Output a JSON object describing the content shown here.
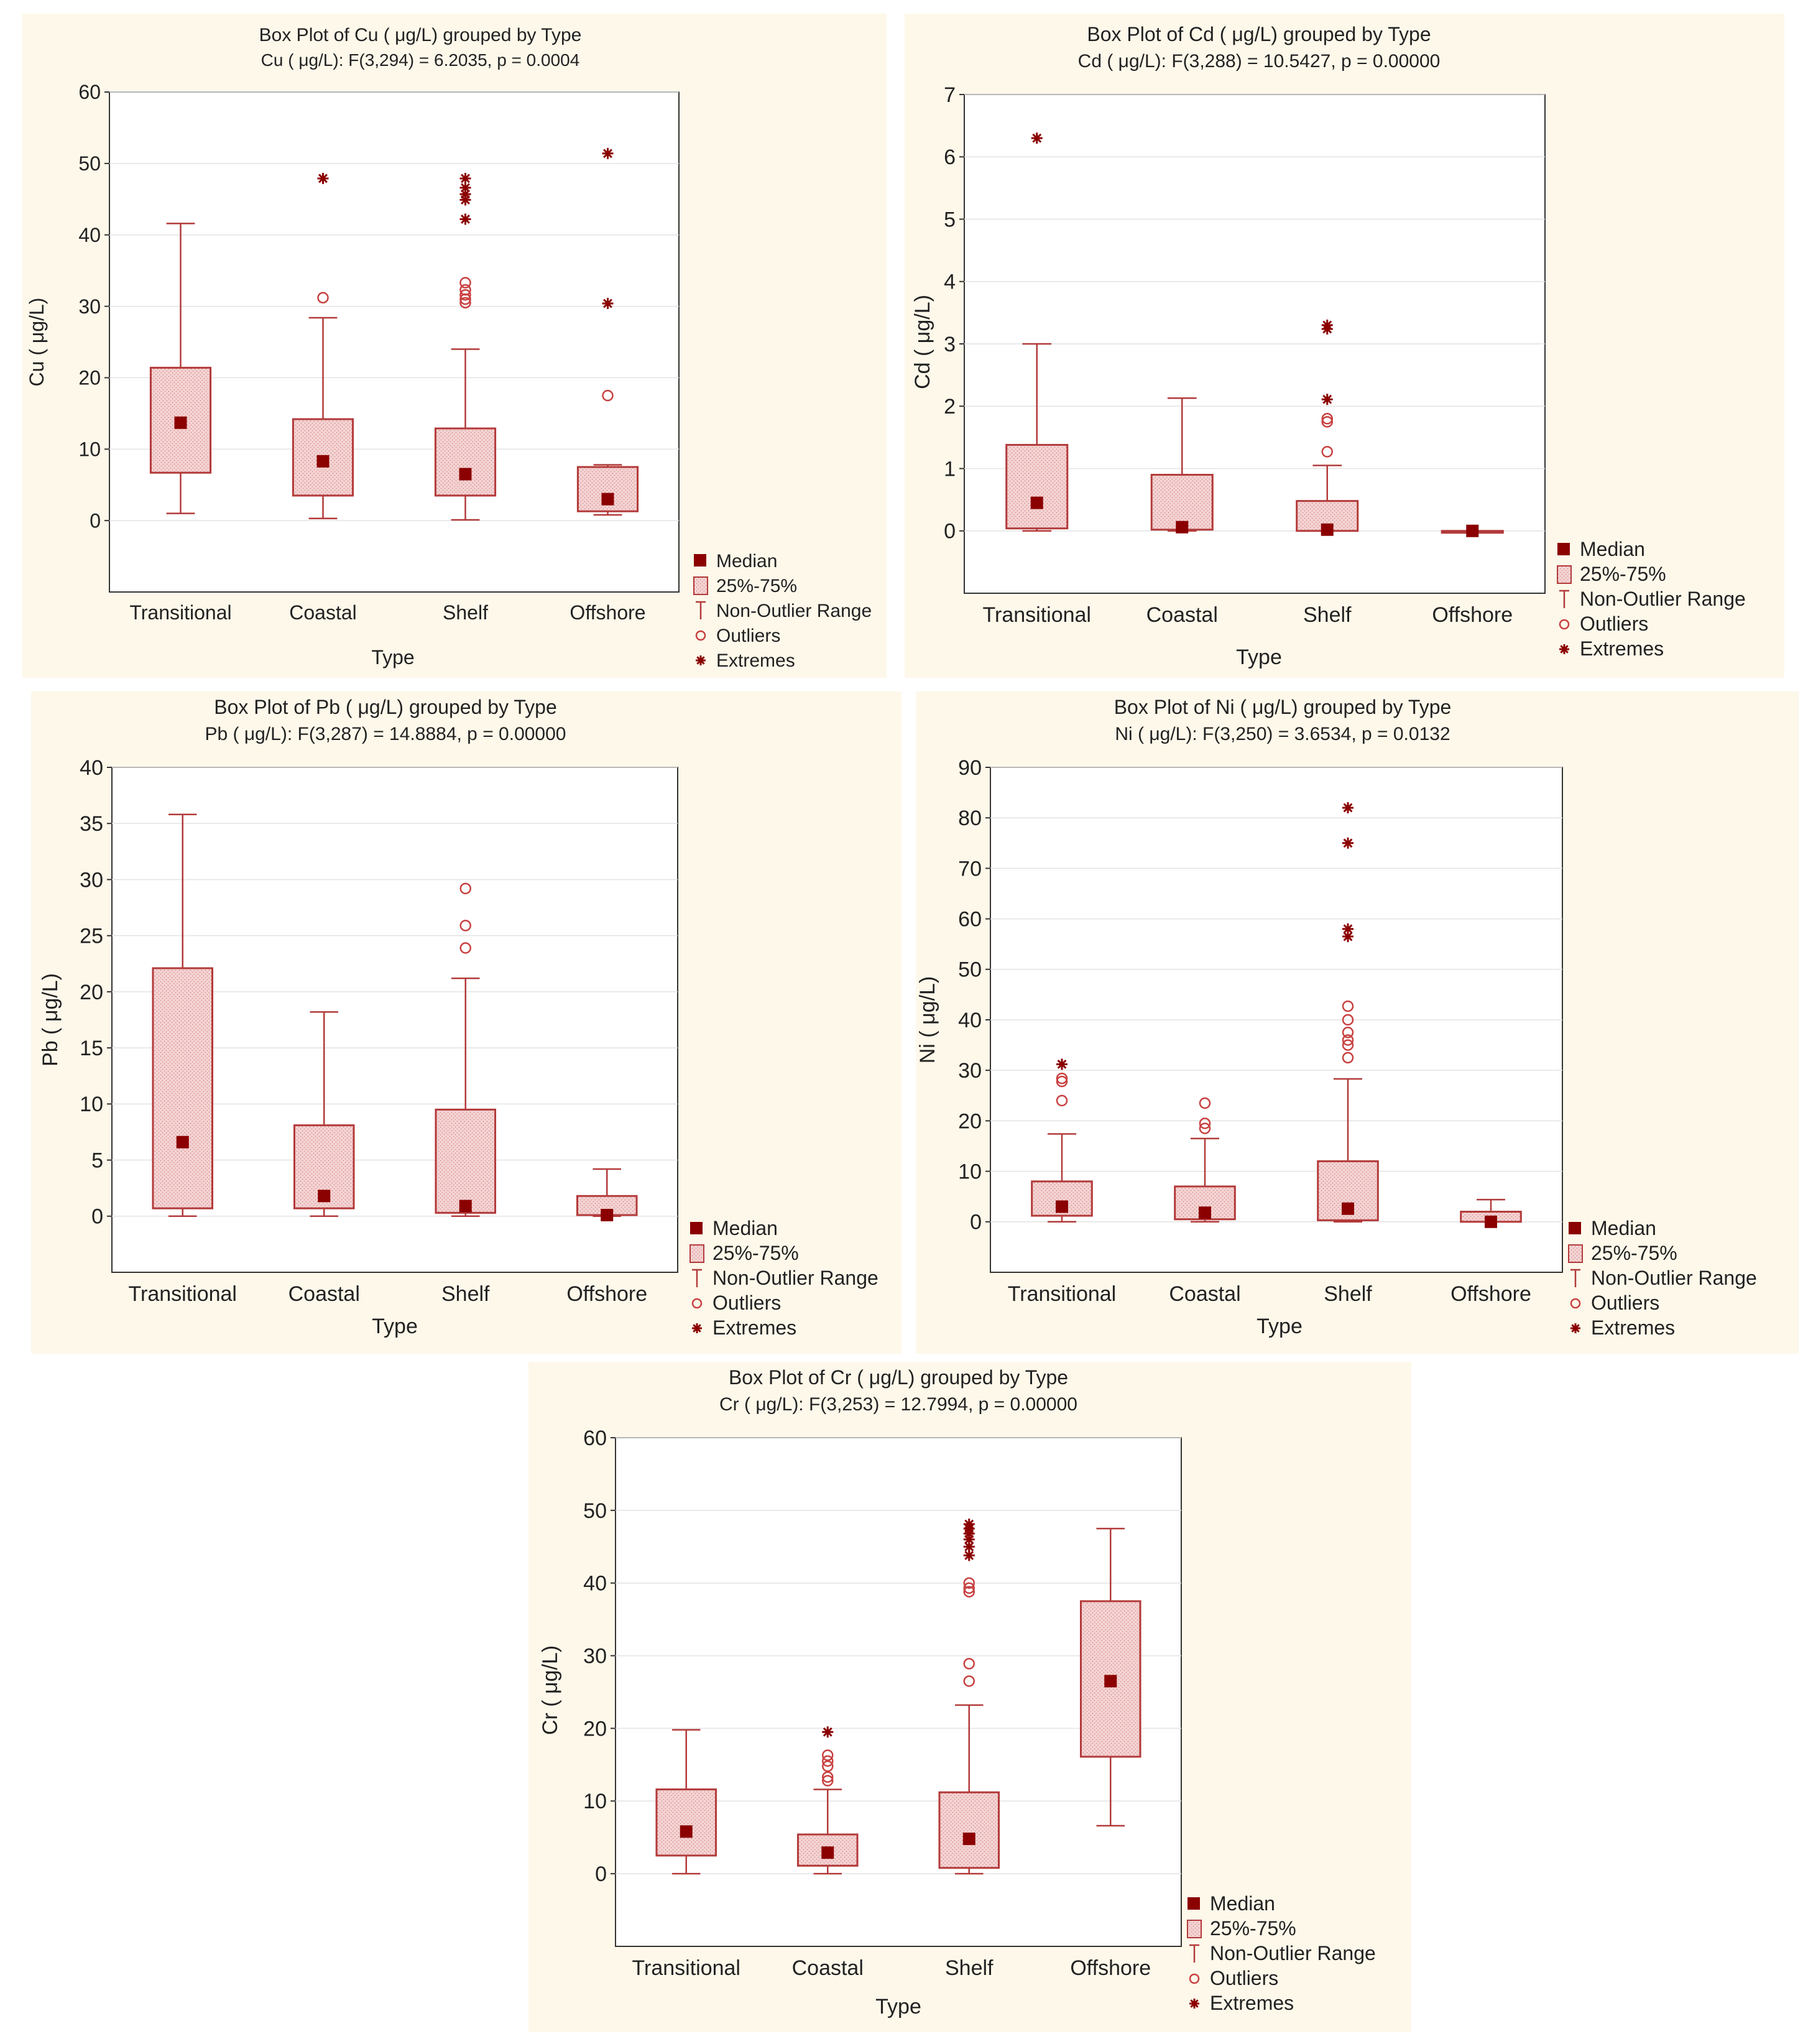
{
  "chart_data": [
    {
      "id": "cu",
      "type": "box",
      "title": "Box Plot of Cu ( μg/L) grouped by  Type",
      "subtitle": "Cu ( μg/L):   F(3,294) = 6.2035, p = 0.0004",
      "xlabel": "Type",
      "ylabel": "Cu ( μg/L)",
      "ylim": [
        -10,
        60
      ],
      "yticks": [
        0,
        10,
        20,
        30,
        40,
        50,
        60
      ],
      "categories": [
        "Transitional",
        "Coastal",
        "Shelf",
        "Offshore"
      ],
      "boxes": [
        {
          "category": "Transitional",
          "min": 1.0,
          "q1": 6.7,
          "median": 13.7,
          "q3": 21.4,
          "max": 41.6,
          "outliers": [],
          "extremes": []
        },
        {
          "category": "Coastal",
          "min": 0.3,
          "q1": 3.5,
          "median": 8.3,
          "q3": 14.2,
          "max": 28.4,
          "outliers": [
            31.2
          ],
          "extremes": [
            47.9
          ]
        },
        {
          "category": "Shelf",
          "min": 0.1,
          "q1": 3.5,
          "median": 6.5,
          "q3": 12.9,
          "max": 24.0,
          "outliers": [
            30.5,
            31.0,
            31.6,
            32.3,
            33.3
          ],
          "extremes": [
            42.2,
            44.9,
            45.7,
            46.6,
            47.9
          ]
        },
        {
          "category": "Offshore",
          "min": 0.8,
          "q1": 1.3,
          "median": 3.0,
          "q3": 7.5,
          "max": 7.8,
          "outliers": [
            17.5
          ],
          "extremes": [
            30.4,
            51.4
          ]
        }
      ]
    },
    {
      "id": "cd",
      "type": "box",
      "title": "Box Plot of Cd  ( μg/L) grouped by  Type",
      "subtitle": "Cd  ( μg/L):   F(3,288) = 10.5427, p = 0.00000",
      "xlabel": "Type",
      "ylabel": "Cd  ( μg/L)",
      "ylim": [
        -1,
        7
      ],
      "yticks": [
        0,
        1,
        2,
        3,
        4,
        5,
        6,
        7
      ],
      "categories": [
        "Transitional",
        "Coastal",
        "Shelf",
        "Offshore"
      ],
      "boxes": [
        {
          "category": "Transitional",
          "min": 0.0,
          "q1": 0.04,
          "median": 0.45,
          "q3": 1.38,
          "max": 3.0,
          "outliers": [],
          "extremes": [
            6.3
          ]
        },
        {
          "category": "Coastal",
          "min": 0.0,
          "q1": 0.02,
          "median": 0.06,
          "q3": 0.9,
          "max": 2.13,
          "outliers": [],
          "extremes": []
        },
        {
          "category": "Shelf",
          "min": 0.0,
          "q1": 0.0,
          "median": 0.02,
          "q3": 0.48,
          "max": 1.05,
          "outliers": [
            1.27,
            1.75,
            1.8
          ],
          "extremes": [
            2.11,
            3.24,
            3.3
          ]
        },
        {
          "category": "Offshore",
          "min": 0.0,
          "q1": 0.0,
          "median": 0.0,
          "q3": 0.0,
          "max": 0.0,
          "outliers": [],
          "extremes": []
        }
      ]
    },
    {
      "id": "pb",
      "type": "box",
      "title": "Box Plot of Pb  ( μg/L) grouped by  Type",
      "subtitle": "Pb  ( μg/L):   F(3,287) = 14.8884, p = 0.00000",
      "xlabel": "Type",
      "ylabel": "Pb  ( μg/L)",
      "ylim": [
        -5,
        40
      ],
      "yticks": [
        0,
        5,
        10,
        15,
        20,
        25,
        30,
        35,
        40
      ],
      "categories": [
        "Transitional",
        "Coastal",
        "Shelf",
        "Offshore"
      ],
      "boxes": [
        {
          "category": "Transitional",
          "min": 0.0,
          "q1": 0.7,
          "median": 6.6,
          "q3": 22.1,
          "max": 35.8,
          "outliers": [],
          "extremes": []
        },
        {
          "category": "Coastal",
          "min": 0.0,
          "q1": 0.7,
          "median": 1.8,
          "q3": 8.1,
          "max": 18.2,
          "outliers": [],
          "extremes": []
        },
        {
          "category": "Shelf",
          "min": 0.0,
          "q1": 0.3,
          "median": 0.9,
          "q3": 9.5,
          "max": 21.2,
          "outliers": [
            23.9,
            25.9,
            29.2
          ],
          "extremes": []
        },
        {
          "category": "Offshore",
          "min": 0.0,
          "q1": 0.1,
          "median": 0.1,
          "q3": 1.8,
          "max": 4.2,
          "outliers": [],
          "extremes": []
        }
      ]
    },
    {
      "id": "ni",
      "type": "box",
      "title": "Box Plot of Ni  ( μg/L) grouped by  Type",
      "subtitle": "Ni  ( μg/L):   F(3,250) = 3.6534, p = 0.0132",
      "xlabel": "Type",
      "ylabel": "Ni  ( μg/L)",
      "ylim": [
        -10,
        90
      ],
      "yticks": [
        0,
        10,
        20,
        30,
        40,
        50,
        60,
        70,
        80,
        90
      ],
      "categories": [
        "Transitional",
        "Coastal",
        "Shelf",
        "Offshore"
      ],
      "boxes": [
        {
          "category": "Transitional",
          "min": 0.0,
          "q1": 1.2,
          "median": 3.0,
          "q3": 8.0,
          "max": 17.4,
          "outliers": [
            24.0,
            27.8,
            28.4
          ],
          "extremes": [
            31.2
          ]
        },
        {
          "category": "Coastal",
          "min": 0.0,
          "q1": 0.5,
          "median": 1.8,
          "q3": 7.0,
          "max": 16.5,
          "outliers": [
            18.5,
            19.5,
            23.5
          ],
          "extremes": []
        },
        {
          "category": "Shelf",
          "min": 0.0,
          "q1": 0.3,
          "median": 2.6,
          "q3": 12.0,
          "max": 28.3,
          "outliers": [
            32.5,
            35.0,
            36.0,
            37.5,
            40.0,
            42.7
          ],
          "extremes": [
            56.5,
            58.0,
            75.0,
            82.0
          ]
        },
        {
          "category": "Offshore",
          "min": 0.0,
          "q1": 0.0,
          "median": 0.0,
          "q3": 2.0,
          "max": 4.4,
          "outliers": [],
          "extremes": []
        }
      ]
    },
    {
      "id": "cr",
      "type": "box",
      "title": "Box Plot of Cr  ( μg/L) grouped by  Type",
      "subtitle": "Cr  ( μg/L):   F(3,253) = 12.7994, p = 0.00000",
      "xlabel": "Type",
      "ylabel": "Cr  ( μg/L)",
      "ylim": [
        -10,
        60
      ],
      "yticks": [
        0,
        10,
        20,
        30,
        40,
        50,
        60
      ],
      "categories": [
        "Transitional",
        "Coastal",
        "Shelf",
        "Offshore"
      ],
      "boxes": [
        {
          "category": "Transitional",
          "min": 0.0,
          "q1": 2.5,
          "median": 5.8,
          "q3": 11.6,
          "max": 19.8,
          "outliers": [],
          "extremes": []
        },
        {
          "category": "Coastal",
          "min": 0.0,
          "q1": 1.1,
          "median": 2.9,
          "q3": 5.4,
          "max": 11.6,
          "outliers": [
            12.8,
            13.3,
            14.8,
            15.5,
            16.3
          ],
          "extremes": [
            19.5
          ]
        },
        {
          "category": "Shelf",
          "min": 0.0,
          "q1": 0.8,
          "median": 4.8,
          "q3": 11.2,
          "max": 23.2,
          "outliers": [
            26.5,
            28.9,
            38.8,
            39.3,
            40.0
          ],
          "extremes": [
            43.8,
            45.0,
            46.0,
            46.8,
            47.5,
            48.1
          ]
        },
        {
          "category": "Offshore",
          "min": 6.6,
          "q1": 16.1,
          "median": 26.5,
          "q3": 37.5,
          "max": 47.5,
          "outliers": [],
          "extremes": []
        }
      ]
    }
  ],
  "legend": {
    "median": "Median",
    "box": "25%-75%",
    "range": "Non-Outlier Range",
    "outliers": "Outliers",
    "extremes": "Extremes"
  },
  "colors": {
    "box_fill": "#f4d4d4",
    "stroke": "#b33a3a",
    "median": "#8b0000",
    "outlier": "#c84040",
    "panel_bg": "#fdf8ea"
  }
}
